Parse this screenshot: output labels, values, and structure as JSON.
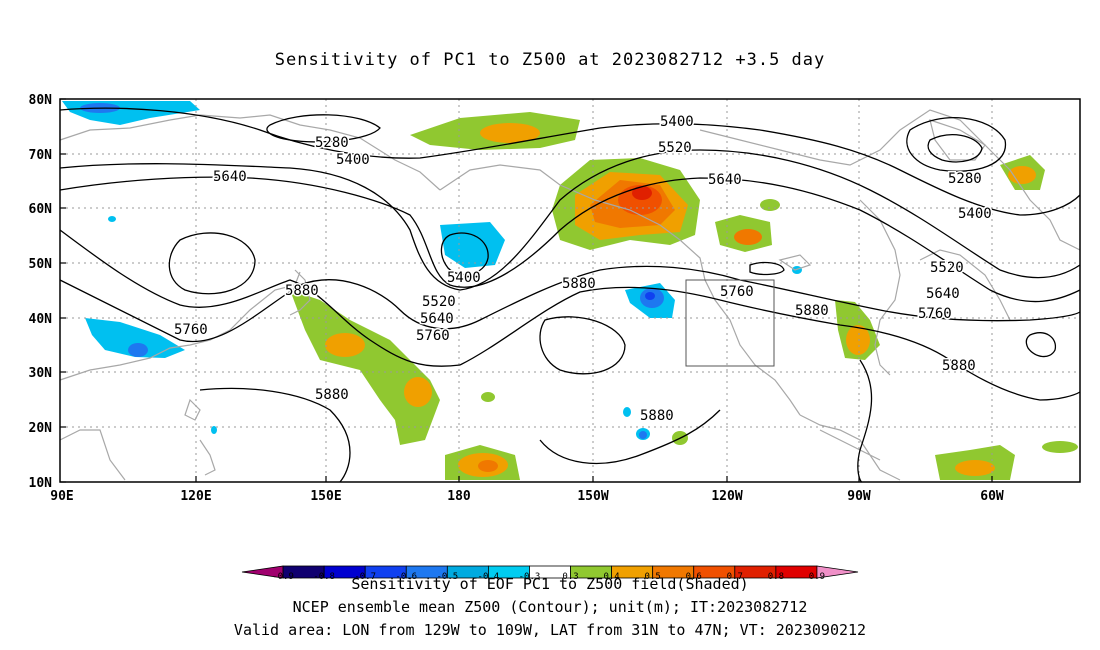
{
  "title": "Sensitivity of PC1 to Z500 at 2023082712 +3.5 day",
  "lat_labels": [
    "80N",
    "70N",
    "60N",
    "50N",
    "40N",
    "30N",
    "20N",
    "10N"
  ],
  "lon_labels": [
    "90E",
    "120E",
    "150E",
    "180",
    "150W",
    "120W",
    "90W",
    "60W"
  ],
  "contour_labels": [
    {
      "text": "5280"
    },
    {
      "text": "5400"
    },
    {
      "text": "5640"
    },
    {
      "text": "5400"
    },
    {
      "text": "5520"
    },
    {
      "text": "5640"
    },
    {
      "text": "5760"
    },
    {
      "text": "5880"
    },
    {
      "text": "5760"
    },
    {
      "text": "5880"
    },
    {
      "text": "5400"
    },
    {
      "text": "5520"
    },
    {
      "text": "5640"
    },
    {
      "text": "5880"
    },
    {
      "text": "5760"
    },
    {
      "text": "5880"
    },
    {
      "text": "5280"
    },
    {
      "text": "5400"
    },
    {
      "text": "5520"
    },
    {
      "text": "5640"
    },
    {
      "text": "5760"
    },
    {
      "text": "5880"
    },
    {
      "text": "5880"
    }
  ],
  "colorbar": {
    "ticks": [
      "-0.9",
      "-0.8",
      "-0.7",
      "-0.6",
      "-0.5",
      "-0.4",
      "-0.3",
      "0.3",
      "0.4",
      "0.5",
      "0.6",
      "0.7",
      "0.8",
      "0.9"
    ],
    "colors": [
      "#a0006e",
      "#100070",
      "#0000d0",
      "#1040f0",
      "#1e78f0",
      "#00aae0",
      "#00ccf0",
      "#ffffff",
      "#90c830",
      "#f0a000",
      "#f07800",
      "#f05000",
      "#e02000",
      "#e00000",
      "#f090c8"
    ]
  },
  "captions": [
    "Sensitivity of EOF PC1 to Z500 field(Shaded)",
    "NCEP ensemble mean Z500 (Contour); unit(m); IT:2023082712",
    "Valid area: LON from 129W to 109W, LAT from 31N to 47N; VT: 2023090212"
  ]
}
